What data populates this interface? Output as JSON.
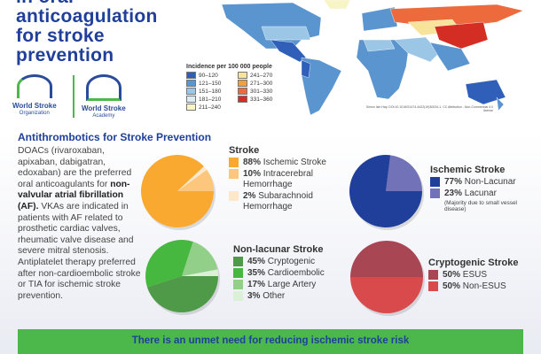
{
  "title": {
    "lines": [
      "in oral",
      "anticoagulation",
      "for stroke",
      "prevention"
    ]
  },
  "logos": {
    "wso": {
      "name": "World Stroke",
      "sub": "Organization"
    },
    "wsa": {
      "name": "World Stroke",
      "sub": "Academy"
    }
  },
  "map_legend": {
    "title": "Incidence per 100 000 people",
    "items": [
      {
        "label": "90–120",
        "color": "#2f5fb8"
      },
      {
        "label": "241–270",
        "color": "#f7e39a"
      },
      {
        "label": "121–150",
        "color": "#5b95cf"
      },
      {
        "label": "271–300",
        "color": "#f0a040"
      },
      {
        "label": "151–180",
        "color": "#9cc6e6"
      },
      {
        "label": "301–330",
        "color": "#ec6a3c"
      },
      {
        "label": "181–210",
        "color": "#dcecf6"
      },
      {
        "label": "331–360",
        "color": "#d42d24"
      },
      {
        "label": "211–240",
        "color": "#f7f4c6"
      }
    ]
  },
  "credit": "Simon Iain Hay. DOI:10.1016/S1474-4422(19)30034-1. CC Attribution - Non-Commercial 4.0 license",
  "section_title": "Antithrombotics for Stroke Prevention",
  "body": {
    "p1": " DOACs (rivaroxaban, apixaban, dabigatran, edoxaban) are the preferred oral anticoagulants for ",
    "bold": "non-valvular atrial fibrillation (AF).",
    "p2": " VKAs are indicated in patients with AF related to prosthetic cardiac valves, rheumatic valve disease and severe mitral stenosis. Antiplatelet therapy preferred after non-cardioembolic stroke or TIA for ischemic stroke prevention."
  },
  "chart_data": [
    {
      "type": "pie",
      "title": "Stroke",
      "slices": [
        {
          "pct": "88%",
          "label": "Ischemic Stroke",
          "value": 88,
          "color": "#f9a930"
        },
        {
          "pct": "10%",
          "label": "Intracerebral Hemorrhage",
          "value": 10,
          "color": "#fcc77c"
        },
        {
          "pct": "2%",
          "label": "Subarachnoid Hemorrhage",
          "value": 2,
          "color": "#fde8cc"
        }
      ]
    },
    {
      "type": "pie",
      "title": "Ischemic Stroke",
      "note": "(Majority due to small vessel disease)",
      "slices": [
        {
          "pct": "77%",
          "label": "Non-Lacunar",
          "value": 77,
          "color": "#1f3f9a"
        },
        {
          "pct": "23%",
          "label": "Lacunar",
          "value": 23,
          "color": "#7272b8"
        }
      ]
    },
    {
      "type": "pie",
      "title": "Non-lacunar Stroke",
      "slices": [
        {
          "pct": "45%",
          "label": "Cryptogenic",
          "value": 45,
          "color": "#4f9a48"
        },
        {
          "pct": "35%",
          "label": "Cardioembolic",
          "value": 35,
          "color": "#46b83f"
        },
        {
          "pct": "17%",
          "label": "Large Artery",
          "value": 17,
          "color": "#92d08a"
        },
        {
          "pct": "3%",
          "label": "Other",
          "value": 3,
          "color": "#dcf0d8"
        }
      ]
    },
    {
      "type": "pie",
      "title": "Cryptogenic Stroke",
      "slices": [
        {
          "pct": "50%",
          "label": "ESUS",
          "value": 50,
          "color": "#a94653"
        },
        {
          "pct": "50%",
          "label": "Non-ESUS",
          "value": 50,
          "color": "#d84a4c"
        }
      ]
    }
  ],
  "banner": "There is an unmet need for reducing ischemic stroke risk"
}
